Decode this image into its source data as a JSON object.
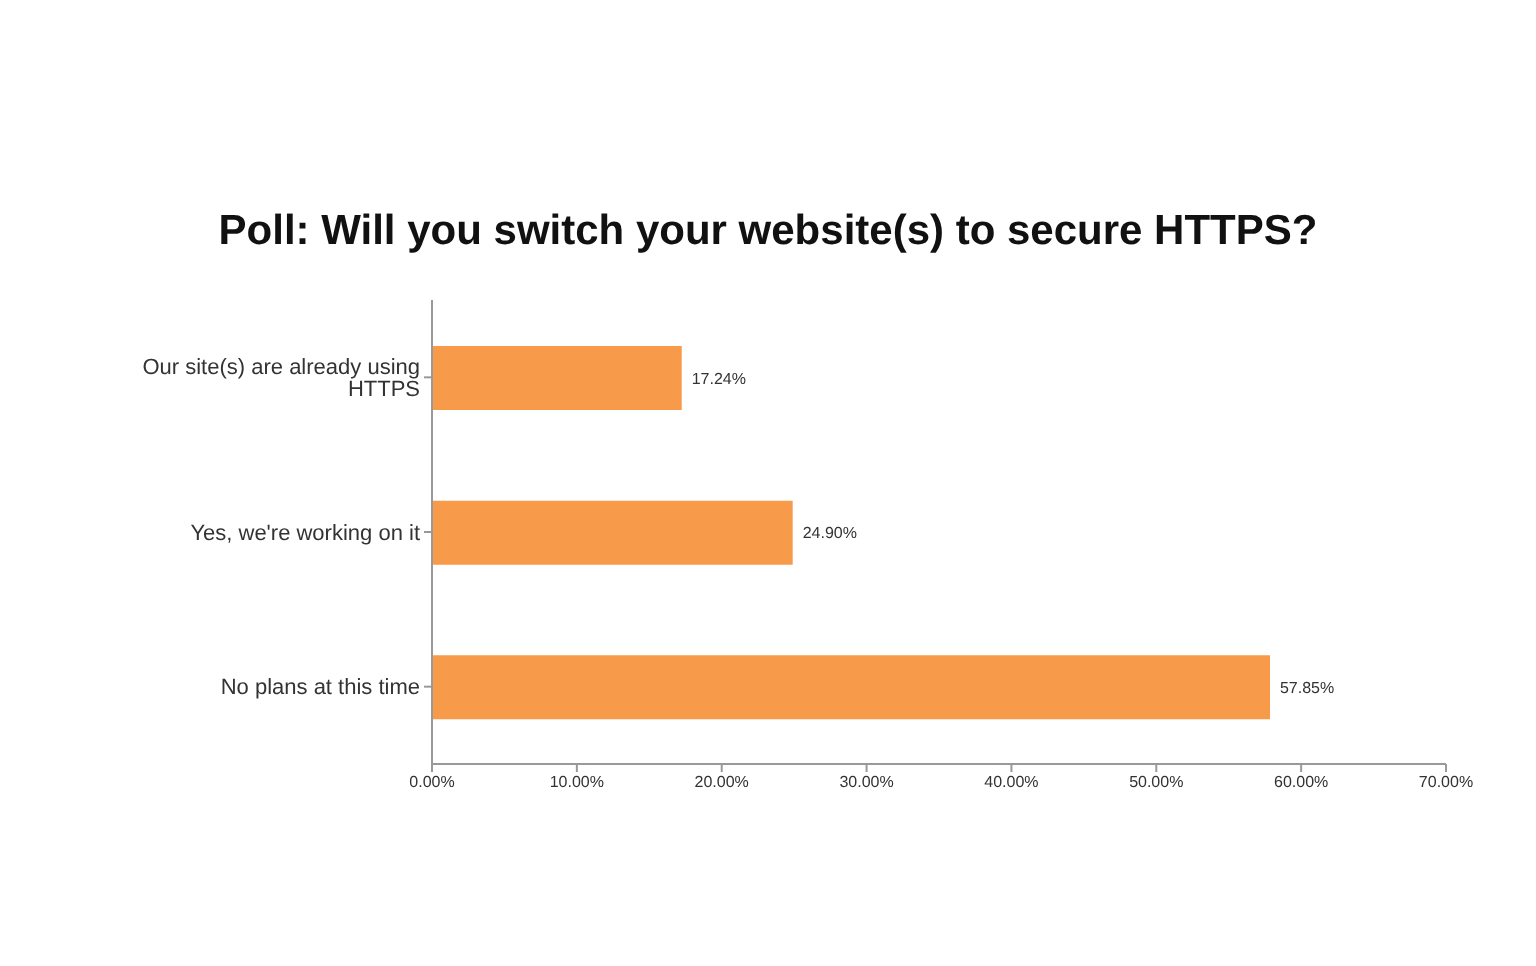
{
  "chart_data": {
    "type": "bar",
    "orientation": "horizontal",
    "title": "Poll: Will you switch your website(s) to secure HTTPS?",
    "categories": [
      "Our site(s) are already using HTTPS",
      "Yes, we're working on it",
      "No plans at this time"
    ],
    "values": [
      17.24,
      24.9,
      57.85
    ],
    "value_labels": [
      "17.24%",
      "24.90%",
      "57.85%"
    ],
    "color": "#f79a4a",
    "xlim": [
      0,
      70
    ],
    "xticks": [
      {
        "value": 0,
        "label": "0.00%"
      },
      {
        "value": 10,
        "label": "10.00%"
      },
      {
        "value": 20,
        "label": "20.00%"
      },
      {
        "value": 30,
        "label": "30.00%"
      },
      {
        "value": 40,
        "label": "40.00%"
      },
      {
        "value": 50,
        "label": "50.00%"
      },
      {
        "value": 60,
        "label": "60.00%"
      },
      {
        "value": 70,
        "label": "70.00%"
      }
    ],
    "grid": false,
    "legend": false
  }
}
